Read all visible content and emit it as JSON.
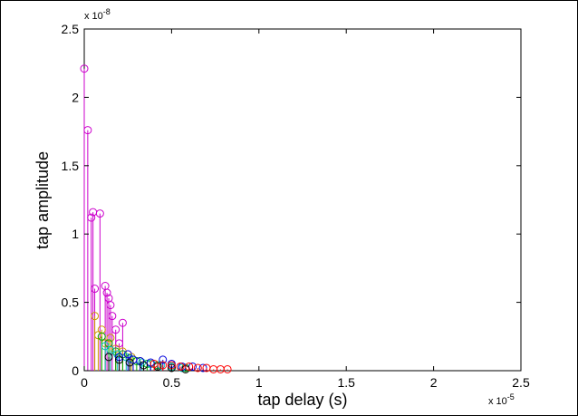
{
  "chart_data": {
    "type": "stem",
    "title": "",
    "xlabel": "tap delay (s)",
    "ylabel": "tap amplitude",
    "x_exponent_label": "x 10",
    "x_exponent_sup": "-5",
    "y_exponent_label": "x 10",
    "y_exponent_sup": "-8",
    "xlim": [
      0,
      2.5
    ],
    "ylim": [
      0,
      2.5
    ],
    "x_ticks": [
      "0",
      "0.5",
      "1",
      "1.5",
      "2",
      "2.5"
    ],
    "y_ticks": [
      "0",
      "0.5",
      "1",
      "1.5",
      "2",
      "2.5"
    ],
    "grid": false,
    "units_note": "x values in units of 1e-5 s; y values in units of 1e-8",
    "series": [
      {
        "color": "#cc00cc",
        "x": [
          0.0,
          0.02,
          0.04,
          0.05,
          0.06,
          0.09,
          0.12,
          0.13,
          0.14,
          0.15,
          0.16,
          0.18,
          0.2,
          0.22
        ],
        "y": [
          2.21,
          1.76,
          1.12,
          1.16,
          0.6,
          1.15,
          0.62,
          0.57,
          0.53,
          0.48,
          0.4,
          0.3,
          0.2,
          0.35
        ]
      },
      {
        "color": "#cc9900",
        "x": [
          0.06,
          0.08,
          0.1,
          0.12,
          0.15,
          0.18,
          0.22,
          0.27,
          0.32,
          0.38
        ],
        "y": [
          0.4,
          0.26,
          0.3,
          0.2,
          0.24,
          0.16,
          0.14,
          0.1,
          0.07,
          0.05
        ]
      },
      {
        "color": "#00aa00",
        "x": [
          0.1,
          0.14,
          0.18,
          0.22,
          0.26,
          0.3,
          0.36,
          0.42,
          0.5,
          0.58
        ],
        "y": [
          0.25,
          0.2,
          0.14,
          0.12,
          0.09,
          0.07,
          0.05,
          0.04,
          0.03,
          0.02
        ]
      },
      {
        "color": "#00bbbb",
        "x": [
          0.12,
          0.15,
          0.19,
          0.24,
          0.28,
          0.33,
          0.38,
          0.44,
          0.5,
          0.56
        ],
        "y": [
          0.18,
          0.15,
          0.12,
          0.1,
          0.08,
          0.06,
          0.05,
          0.04,
          0.03,
          0.02
        ]
      },
      {
        "color": "#0000dd",
        "x": [
          0.2,
          0.25,
          0.28,
          0.32,
          0.38,
          0.45,
          0.5,
          0.56,
          0.62,
          0.68
        ],
        "y": [
          0.1,
          0.12,
          0.08,
          0.07,
          0.06,
          0.08,
          0.05,
          0.03,
          0.03,
          0.02
        ]
      },
      {
        "color": "#000000",
        "x": [
          0.14,
          0.2,
          0.26,
          0.34,
          0.42,
          0.5,
          0.58
        ],
        "y": [
          0.1,
          0.08,
          0.06,
          0.04,
          0.03,
          0.02,
          0.01
        ]
      },
      {
        "color": "#ff0000",
        "x": [
          0.4,
          0.45,
          0.5,
          0.55,
          0.6,
          0.65,
          0.7,
          0.74,
          0.78,
          0.82
        ],
        "y": [
          0.05,
          0.04,
          0.04,
          0.03,
          0.03,
          0.02,
          0.02,
          0.01,
          0.01,
          0.01
        ]
      }
    ]
  }
}
